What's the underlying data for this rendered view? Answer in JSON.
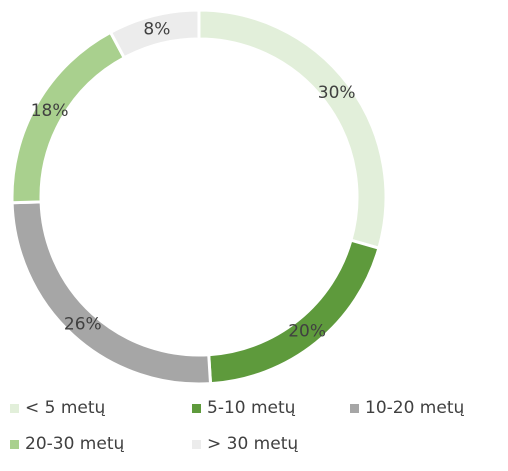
{
  "chart_data": {
    "type": "pie",
    "variant": "donut",
    "title": "",
    "categories": [
      "< 5 metų",
      "5-10 metų",
      "10-20 metų",
      "20-30 metų",
      "> 30 metų"
    ],
    "values": [
      30,
      20,
      26,
      18,
      8
    ],
    "labels": [
      "30%",
      "20%",
      "26%",
      "18%",
      "8%"
    ],
    "colors": [
      "#e2efda",
      "#5e9a3c",
      "#a6a6a6",
      "#a9d08e",
      "#ececec"
    ],
    "legend_position": "bottom"
  }
}
